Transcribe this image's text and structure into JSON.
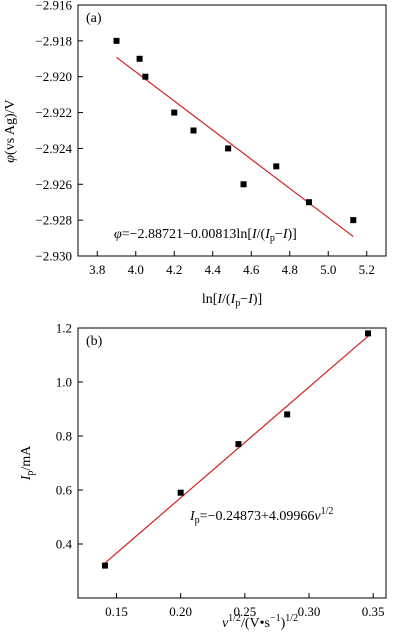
{
  "chart_data": [
    {
      "type": "scatter",
      "panel_label": "(a)",
      "xlabel": "ln[I/(Ip−I)]",
      "ylabel": "φ(vs Ag)/V",
      "xlim": [
        3.7,
        5.3
      ],
      "ylim": [
        -2.93,
        -2.916
      ],
      "xticks": [
        3.8,
        4.0,
        4.2,
        4.4,
        4.6,
        4.8,
        5.0,
        5.2
      ],
      "yticks": [
        -2.916,
        -2.918,
        -2.92,
        -2.922,
        -2.924,
        -2.926,
        -2.928,
        -2.93
      ],
      "xtick_labels": [
        "3.8",
        "4.0",
        "4.2",
        "4.4",
        "4.6",
        "4.8",
        "5.0",
        "5.2"
      ],
      "ytick_labels": [
        "−2.916",
        "−2.918",
        "−2.920",
        "−2.922",
        "−2.924",
        "−2.926",
        "−2.928",
        "−2.930"
      ],
      "points": {
        "x": [
          3.9,
          4.02,
          4.05,
          4.2,
          4.3,
          4.48,
          4.56,
          4.73,
          4.9,
          5.13
        ],
        "y": [
          -2.918,
          -2.919,
          -2.92,
          -2.922,
          -2.923,
          -2.924,
          -2.926,
          -2.925,
          -2.927,
          -2.928
        ]
      },
      "fit_line": {
        "intercept": -2.88721,
        "slope": -0.00813,
        "x": [
          3.9,
          5.13
        ]
      },
      "equation": "φ=−2.88721−0.00813ln[I/(Ip−I)]",
      "grid": false,
      "colors": {
        "points": "#000000",
        "fit": "#d42020"
      }
    },
    {
      "type": "scatter",
      "panel_label": "(b)",
      "xlabel": "v1/2/(V•s−1)1/2",
      "ylabel": "Ip/mA",
      "xlim": [
        0.12,
        0.36
      ],
      "ylim": [
        0.2,
        1.2
      ],
      "xticks": [
        0.15,
        0.2,
        0.25,
        0.3,
        0.35
      ],
      "yticks": [
        0.4,
        0.6,
        0.8,
        1.0,
        1.2
      ],
      "xtick_labels": [
        "0.15",
        "0.20",
        "0.25",
        "0.30",
        "0.35"
      ],
      "ytick_labels": [
        "0.4",
        "0.6",
        "0.8",
        "1.0",
        "1.2"
      ],
      "points": {
        "x": [
          0.141,
          0.2,
          0.245,
          0.283,
          0.346
        ],
        "y": [
          0.32,
          0.59,
          0.77,
          0.88,
          1.18
        ]
      },
      "fit_line": {
        "intercept": -0.24873,
        "slope": 4.09966,
        "x": [
          0.141,
          0.346
        ]
      },
      "equation": "Ip=−0.24873+4.09966v1/2",
      "grid": false,
      "colors": {
        "points": "#000000",
        "fit": "#d42020"
      }
    }
  ]
}
